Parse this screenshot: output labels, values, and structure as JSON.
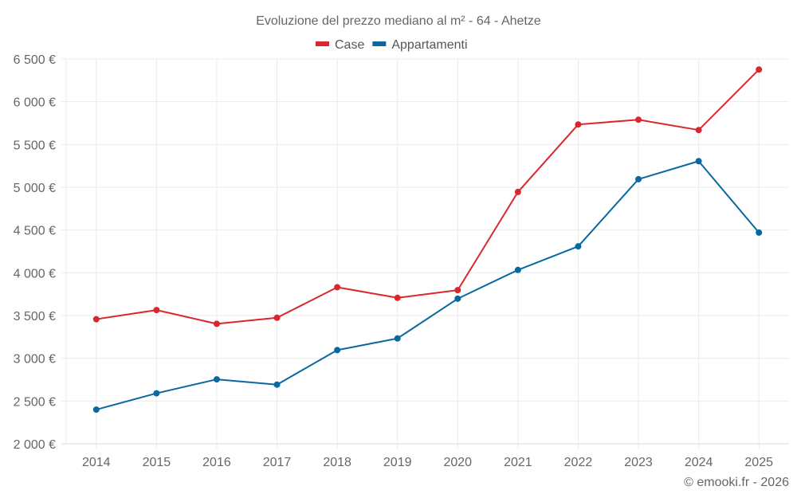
{
  "chart_data": {
    "type": "line",
    "title": "Evoluzione del prezzo mediano al m² - 64 - Ahetze",
    "xlabel": "",
    "ylabel": "",
    "categories": [
      "2014",
      "2015",
      "2016",
      "2017",
      "2018",
      "2019",
      "2020",
      "2021",
      "2022",
      "2023",
      "2024",
      "2025"
    ],
    "series": [
      {
        "name": "Case",
        "color": "#d9272e",
        "values": [
          3457,
          3564,
          3403,
          3474,
          3831,
          3707,
          3797,
          4945,
          5734,
          5790,
          5669,
          6376
        ]
      },
      {
        "name": "Appartamenti",
        "color": "#0868a0",
        "values": [
          2400,
          2591,
          2754,
          2692,
          3096,
          3232,
          3697,
          4033,
          4309,
          5094,
          5305,
          4470
        ]
      }
    ],
    "ylim": [
      2000,
      6500
    ],
    "yticks": [
      2000,
      2500,
      3000,
      3500,
      4000,
      4500,
      5000,
      5500,
      6000,
      6500
    ],
    "ytick_labels": [
      "2 000 €",
      "2 500 €",
      "3 000 €",
      "3 500 €",
      "4 000 €",
      "4 500 €",
      "5 000 €",
      "5 500 €",
      "6 000 €",
      "6 500 €"
    ],
    "grid": true,
    "legend_position": "top-center"
  },
  "footer": {
    "credit": "© emooki.fr - 2026"
  }
}
